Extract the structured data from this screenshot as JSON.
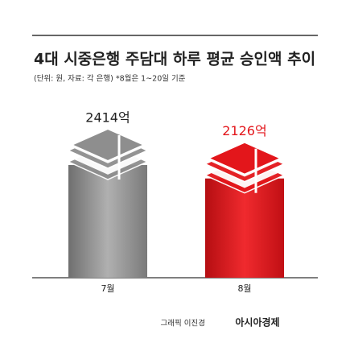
{
  "chart_data": {
    "type": "bar",
    "title": "4대 시중은행 주담대 하루 평균 승인액 추이",
    "subtitle": "(단위: 원, 자료: 각 은행) *8월은 1~20일 기준",
    "categories": [
      "7월",
      "8월"
    ],
    "values": [
      2414,
      2126
    ],
    "value_labels": [
      "2414억",
      "2126억"
    ],
    "colors": [
      "#8e8e8e",
      "#e3161b"
    ],
    "label_colors": [
      "#222222",
      "#e3161b"
    ],
    "credit": "그래픽 이진경",
    "brand": "아시아경제"
  }
}
